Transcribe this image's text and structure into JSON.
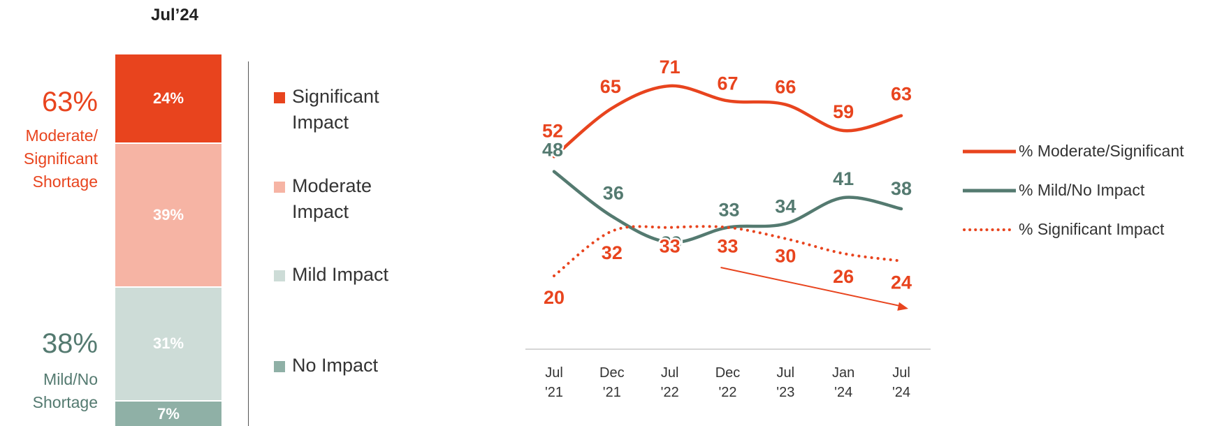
{
  "bar": {
    "title": "Jul’24",
    "segments": [
      {
        "label": "24%",
        "value": 24,
        "color": "#e8441e"
      },
      {
        "label": "39%",
        "value": 39,
        "color": "#f6b4a4"
      },
      {
        "label": "31%",
        "value": 31,
        "color": "#cddcd7"
      },
      {
        "label": "7%",
        "value": 7,
        "color": "#8fb0a6"
      }
    ],
    "summary_top": {
      "pct": "63%",
      "lines": [
        "Moderate/",
        "Significant",
        "Shortage"
      ],
      "color": "#e8441e"
    },
    "summary_bottom": {
      "pct": "38%",
      "lines": [
        "Mild/No",
        "Shortage"
      ],
      "color": "#547a70"
    }
  },
  "bar_legend": [
    {
      "lines": [
        "Significant",
        "Impact"
      ],
      "color": "#e8441e"
    },
    {
      "lines": [
        "Moderate",
        "Impact"
      ],
      "color": "#f6b4a4"
    },
    {
      "lines": [
        "Mild Impact"
      ],
      "color": "#cddcd7"
    },
    {
      "lines": [
        "No Impact"
      ],
      "color": "#8fb0a6"
    }
  ],
  "chart_data": {
    "type": "line",
    "x": [
      "Jul '21",
      "Dec '21",
      "Jul '22",
      "Dec '22",
      "Jul '23",
      "Jan '24",
      "Jul '24"
    ],
    "x_tick_lines": [
      [
        "Jul",
        "'21"
      ],
      [
        "Dec",
        "'21"
      ],
      [
        "Jul",
        "'22"
      ],
      [
        "Dec",
        "'22"
      ],
      [
        "Jul",
        "'23"
      ],
      [
        "Jan",
        "'24"
      ],
      [
        "Jul",
        "'24"
      ]
    ],
    "series": [
      {
        "name": "% Moderate/Significant",
        "values": [
          52,
          65,
          71,
          67,
          66,
          59,
          63
        ],
        "color": "#e8441e",
        "style": "solid"
      },
      {
        "name": "% Mild/No Impact",
        "values": [
          48,
          36,
          29,
          33,
          34,
          41,
          38
        ],
        "color": "#547a70",
        "style": "solid"
      },
      {
        "name": "% Significant Impact",
        "values": [
          20,
          32,
          33,
          33,
          30,
          26,
          24
        ],
        "color": "#e8441e",
        "style": "dotted"
      }
    ],
    "ylim": [
      10,
      80
    ],
    "legend_position": "right",
    "trend_arrow": {
      "from": "Dec '22",
      "to": "Jul '24",
      "color": "#e8441e"
    }
  }
}
